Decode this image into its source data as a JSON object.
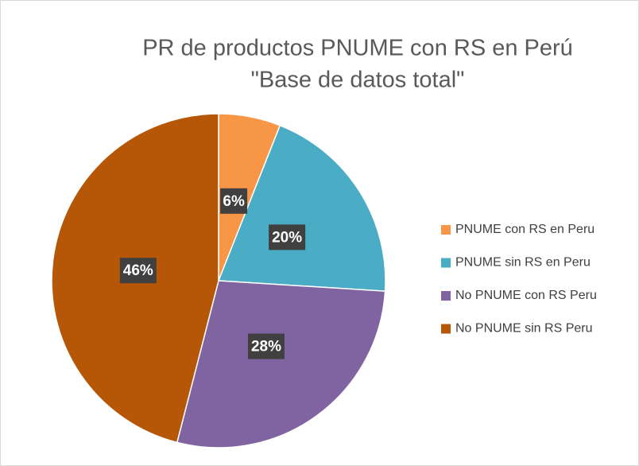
{
  "chart_data": {
    "type": "pie",
    "title": [
      "PR de productos PNUME con RS en Perú",
      "\"Base de datos total\""
    ],
    "categories": [
      "PNUME con RS en Peru",
      "PNUME sin RS en Peru",
      "No PNUME con RS Peru",
      "No PNUME sin RS Peru"
    ],
    "values": [
      6,
      20,
      28,
      46
    ],
    "value_labels": [
      "6%",
      "20%",
      "28%",
      "46%"
    ],
    "colors": [
      "#f79646",
      "#4bacc6",
      "#8064a2",
      "#b65708"
    ],
    "legend": "right"
  }
}
